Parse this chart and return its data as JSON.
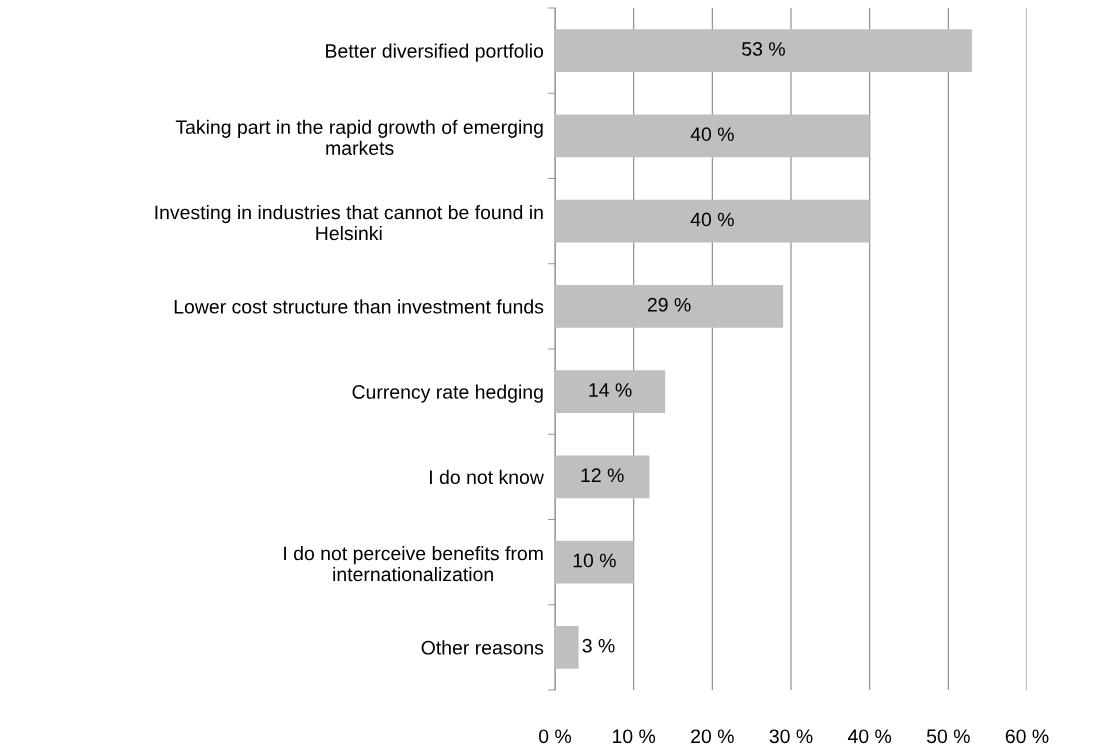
{
  "chart_data": {
    "type": "bar",
    "orientation": "horizontal",
    "categories": [
      "Better diversified portfolio",
      "Taking part in the rapid growth of emerging\nmarkets",
      "Investing in industries that cannot be found in\nHelsinki",
      "Lower cost structure than investment funds",
      "Currency rate hedging",
      "I do not know",
      "I do not perceive benefits from\ninternationalization",
      "Other reasons"
    ],
    "values": [
      53,
      40,
      40,
      29,
      14,
      12,
      10,
      3
    ],
    "value_labels": [
      "53 %",
      "40 %",
      "40 %",
      "29 %",
      "14 %",
      "12 %",
      "10 %",
      "3 %"
    ],
    "color": "#bfbfbf",
    "grid": "x",
    "xlim": [
      0,
      60
    ],
    "xticks": [
      {
        "value": 0,
        "label": "0 %"
      },
      {
        "value": 10,
        "label": "10 %"
      },
      {
        "value": 20,
        "label": "20 %"
      },
      {
        "value": 30,
        "label": "30 %"
      },
      {
        "value": 40,
        "label": "40 %"
      },
      {
        "value": 50,
        "label": "50 %"
      },
      {
        "value": 60,
        "label": "60 %"
      }
    ]
  }
}
